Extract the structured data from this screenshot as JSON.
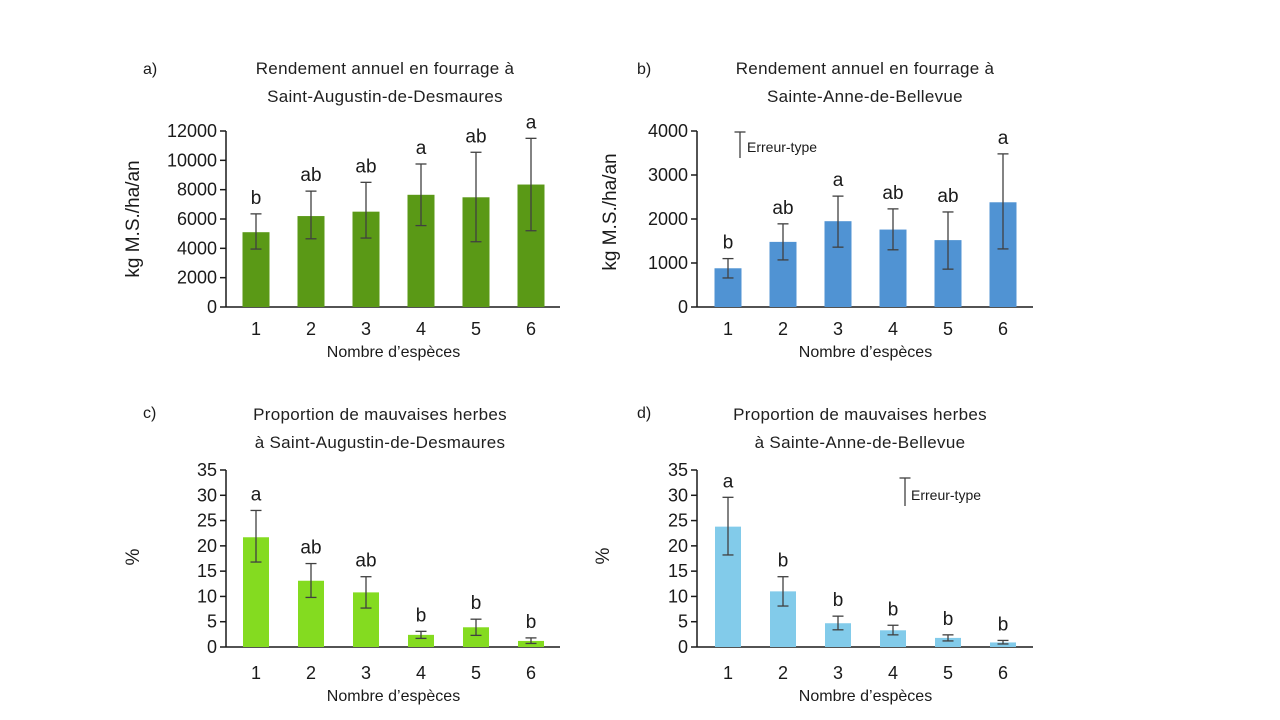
{
  "figure": {
    "background": "#ffffff",
    "axis_color": "#1a1a1a",
    "error_bar_color": "#404040",
    "text_color": "#1a1a1a"
  },
  "chart_data": [
    {
      "type": "bar",
      "panel_label": "a)",
      "title": "Rendement annuel en fourrage à Saint-Augustin-de-Desmaures",
      "title_line1": "Rendement annuel en fourrage à",
      "title_line2": "Saint-Augustin-de-Desmaures",
      "xlabel": "Nombre d’espèces",
      "ylabel": "kg M.S./ha/an",
      "categories": [
        "1",
        "2",
        "3",
        "4",
        "5",
        "6"
      ],
      "values": [
        5100,
        6200,
        6500,
        7650,
        7480,
        8350
      ],
      "error_low": [
        3950,
        4650,
        4700,
        5550,
        4450,
        5200
      ],
      "error_high": [
        6350,
        7900,
        8500,
        9750,
        10550,
        11500
      ],
      "sig_letters": [
        "b",
        "ab",
        "ab",
        "a",
        "ab",
        "a"
      ],
      "ylim": [
        0,
        12000
      ],
      "ytick_step": 2000,
      "bar_color": "#5a9916",
      "legend_label": null,
      "grid": false
    },
    {
      "type": "bar",
      "panel_label": "b)",
      "title": "Rendement annuel en fourrage à Sainte-Anne-de-Bellevue",
      "title_line1": "Rendement annuel en fourrage à",
      "title_line2": "Sainte-Anne-de-Bellevue",
      "xlabel": "Nombre d’espèces",
      "ylabel": "kg M.S./ha/an",
      "categories": [
        "1",
        "2",
        "3",
        "4",
        "5",
        "6"
      ],
      "values": [
        880,
        1480,
        1950,
        1760,
        1520,
        2380
      ],
      "error_low": [
        660,
        1070,
        1360,
        1300,
        860,
        1320
      ],
      "error_high": [
        1100,
        1890,
        2520,
        2230,
        2160,
        3480
      ],
      "sig_letters": [
        "b",
        "ab",
        "a",
        "ab",
        "ab",
        "a"
      ],
      "ylim": [
        0,
        4000
      ],
      "ytick_step": 1000,
      "bar_color": "#5093d3",
      "legend_label": "Erreur-type",
      "grid": false
    },
    {
      "type": "bar",
      "panel_label": "c)",
      "title": "Proportion de mauvaises herbes à Saint-Augustin-de-Desmaures",
      "title_line1": "Proportion de mauvaises herbes",
      "title_line2": "à Saint-Augustin-de-Desmaures",
      "xlabel": "Nombre d’espèces",
      "ylabel": "%",
      "categories": [
        "1",
        "2",
        "3",
        "4",
        "5",
        "6"
      ],
      "values": [
        21.7,
        13.1,
        10.8,
        2.4,
        3.9,
        1.2
      ],
      "error_low": [
        16.8,
        9.8,
        7.7,
        1.7,
        2.3,
        0.7
      ],
      "error_high": [
        27.0,
        16.5,
        13.9,
        3.1,
        5.5,
        1.8
      ],
      "sig_letters": [
        "a",
        "ab",
        "ab",
        "b",
        "b",
        "b"
      ],
      "ylim": [
        0,
        35
      ],
      "ytick_step": 5,
      "bar_color": "#84db20",
      "legend_label": null,
      "grid": false
    },
    {
      "type": "bar",
      "panel_label": "d)",
      "title": "Proportion de mauvaises herbes à Sainte-Anne-de-Bellevue",
      "title_line1": "Proportion de mauvaises herbes",
      "title_line2": "à Sainte-Anne-de-Bellevue",
      "xlabel": "Nombre d’espèces",
      "ylabel": "%",
      "categories": [
        "1",
        "2",
        "3",
        "4",
        "5",
        "6"
      ],
      "values": [
        23.8,
        11.0,
        4.7,
        3.3,
        1.8,
        0.9
      ],
      "error_low": [
        18.2,
        8.1,
        3.4,
        2.4,
        1.2,
        0.6
      ],
      "error_high": [
        29.6,
        13.9,
        6.1,
        4.3,
        2.4,
        1.3
      ],
      "sig_letters": [
        "a",
        "b",
        "b",
        "b",
        "b",
        "b"
      ],
      "ylim": [
        0,
        35
      ],
      "ytick_step": 5,
      "bar_color": "#82cbea",
      "legend_label": "Erreur-type",
      "grid": false
    }
  ]
}
